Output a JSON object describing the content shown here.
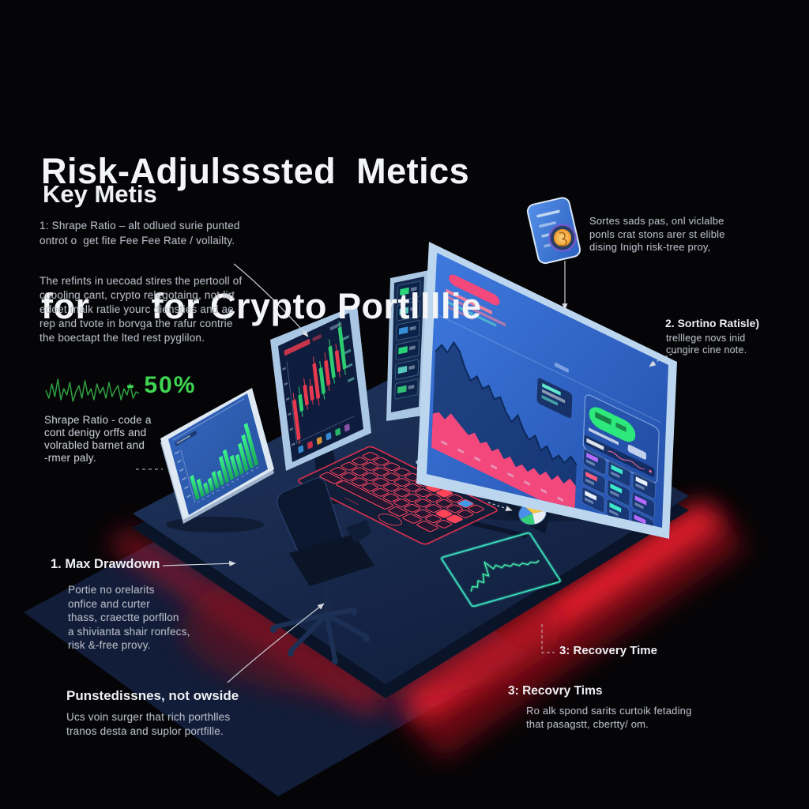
{
  "title": {
    "line1": "Risk-Adjulsssted  Metics",
    "line2": "for      for Crypto Portllllie"
  },
  "key_metrics": {
    "heading": "Key Metis",
    "item1": "1: Shrape Ratio – alt odlued surie punted\nontrot o  get fite Fee Fee Rate / vollailty.",
    "paragraph": "The refints in uecoad stires the pertooll of\ncuooling cant, crypto relegotaing, not lirt\nedoet malk ratlie yourc diensties and ae\nrep and tvote in borvga the rafur contrie\nthe boectapt the lted rest pyglilon."
  },
  "sharpe_note": {
    "value": "- 50%",
    "text": "Shrape Ratio - code a\ncont denigy orffs and\nvolrabled barnet and\n-rmer paly."
  },
  "max_drawdown": {
    "heading": "1. Max Drawdown",
    "text": "Portie no orelarits\nonfice and curter\nthass, craectte porfllon\na shivianta shair ronfecs,\nrisk &-free provy."
  },
  "unsteadiness": {
    "heading": "Punstedissnes, not owside",
    "text": "Ucs voin surger that rich porthlles\ntranos desta and suplor portfille."
  },
  "sortino_intro": {
    "text": "Sortes sads pas, onl viclalbe\nponls crat stons arer st elible\ndising Inigh risk-tree proy,"
  },
  "sortino": {
    "heading": "2. Sortino Ratisle)",
    "text": "trelllege novs inid\ncungire cine note."
  },
  "recovery_callout": {
    "label": "3: Recovery Time"
  },
  "recovery": {
    "heading": "3: Recovry Tims",
    "text": "Ro alk spond sarits curtoik fetading\nthat pasagstt, cbertty/ om."
  },
  "colors": {
    "background": "#050507",
    "heading_text": "#eef0f4",
    "body_text": "#b3b8c2",
    "accent_green": "#3fd653",
    "screen_blue": "#2e63c9",
    "screen_navy": "#0e1d3d",
    "frame_light": "#bcd6ef",
    "candle_red": "#e83a4e",
    "candle_green": "#2ecc71",
    "bar_green": "#2ee87e",
    "pink": "#f2487c",
    "glow_red": "#ff2130",
    "neon_teal": "#3ef0c8",
    "desk": "#182b52",
    "floor": "#111d39",
    "chair": "#0c1830",
    "coin_orange": "#f5a73b"
  },
  "illustration": {
    "sparkline": [
      0.5,
      0.25,
      0.7,
      0.3,
      0.85,
      0.2,
      0.55,
      0.35,
      0.75,
      0.15,
      0.45,
      0.65,
      0.25,
      0.8,
      0.35,
      0.55,
      0.2,
      0.7,
      0.4,
      0.6,
      0.25,
      0.75,
      0.3,
      0.5,
      0.65,
      0.2,
      0.55,
      0.35,
      0.7,
      0.25,
      0.45,
      0.4
    ],
    "tablet_bars": [
      0.5,
      0.36,
      0.22,
      0.26,
      0.34,
      0.3,
      0.54,
      0.62,
      0.44,
      0.4,
      0.58,
      0.7,
      0.88
    ],
    "candles": [
      {
        "x": 0.1,
        "by": 0.5,
        "bh": 0.34,
        "wy": 0.44,
        "wh": 0.44,
        "t": "r"
      },
      {
        "x": 0.185,
        "by": 0.48,
        "bh": 0.14,
        "wy": 0.41,
        "wh": 0.26,
        "t": "g"
      },
      {
        "x": 0.265,
        "by": 0.42,
        "bh": 0.17,
        "wy": 0.36,
        "wh": 0.27,
        "t": "r"
      },
      {
        "x": 0.345,
        "by": 0.45,
        "bh": 0.12,
        "wy": 0.39,
        "wh": 0.22,
        "t": "r"
      },
      {
        "x": 0.425,
        "by": 0.28,
        "bh": 0.3,
        "wy": 0.22,
        "wh": 0.42,
        "t": "r"
      },
      {
        "x": 0.505,
        "by": 0.34,
        "bh": 0.22,
        "wy": 0.28,
        "wh": 0.33,
        "t": "g"
      },
      {
        "x": 0.585,
        "by": 0.3,
        "bh": 0.21,
        "wy": 0.23,
        "wh": 0.33,
        "t": "r"
      },
      {
        "x": 0.665,
        "by": 0.2,
        "bh": 0.27,
        "wy": 0.14,
        "wh": 0.38,
        "t": "g"
      },
      {
        "x": 0.745,
        "by": 0.26,
        "bh": 0.18,
        "wy": 0.2,
        "wh": 0.29,
        "t": "r"
      },
      {
        "x": 0.825,
        "by": 0.08,
        "bh": 0.36,
        "wy": 0.03,
        "wh": 0.46,
        "t": "g"
      }
    ],
    "main_line": [
      0.7,
      0.78,
      0.74,
      0.85,
      0.8,
      0.68,
      0.6,
      0.66,
      0.58,
      0.63,
      0.54,
      0.58,
      0.48,
      0.42,
      0.5,
      0.4,
      0.34,
      0.4,
      0.3,
      0.36,
      0.27,
      0.33,
      0.29,
      0.37,
      0.32
    ],
    "pink_area": [
      0.3,
      0.34,
      0.3,
      0.38,
      0.34,
      0.3,
      0.26,
      0.31,
      0.24,
      0.28,
      0.22,
      0.27,
      0.2,
      0.25,
      0.18,
      0.23,
      0.19,
      0.25,
      0.21,
      0.27,
      0.22,
      0.29,
      0.24,
      0.31,
      0.27
    ],
    "pad_line": [
      0.15,
      0.28,
      0.22,
      0.4,
      0.3,
      0.55,
      0.45,
      0.88,
      0.62,
      0.7,
      0.58,
      0.64,
      0.55,
      0.6,
      0.5,
      0.54,
      0.46,
      0.5,
      0.44,
      0.48
    ]
  }
}
